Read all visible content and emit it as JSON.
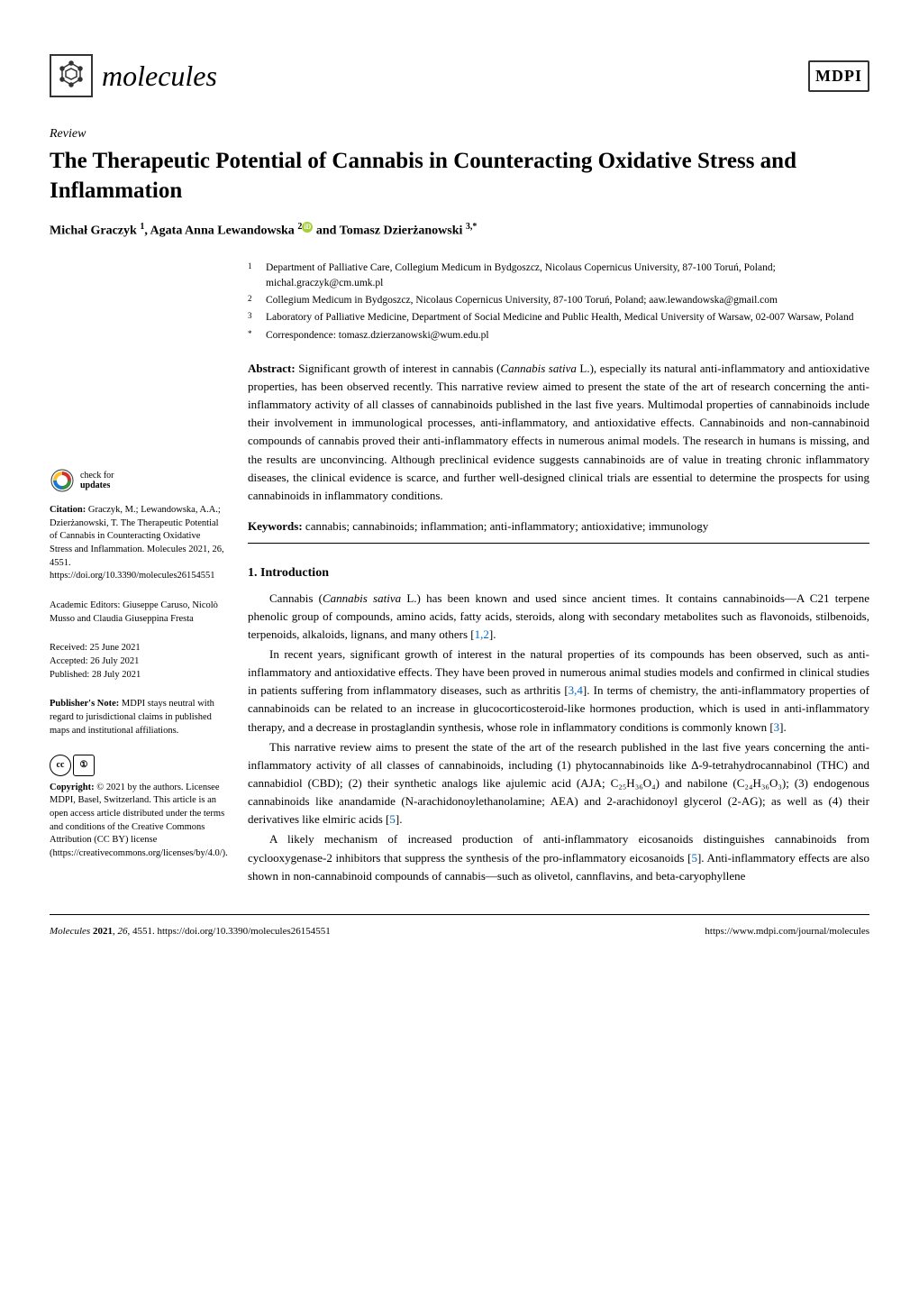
{
  "journal": {
    "name": "molecules",
    "publisher_logo": "MDPI"
  },
  "article_type": "Review",
  "title": "The Therapeutic Potential of Cannabis in Counteracting Oxidative Stress and Inflammation",
  "authors": {
    "a1": {
      "name": "Michał Graczyk",
      "sup": "1"
    },
    "a2": {
      "name": "Agata Anna Lewandowska",
      "sup": "2",
      "orcid": true
    },
    "a3": {
      "name": "Tomasz Dzierżanowski",
      "sup": "3,*"
    }
  },
  "affiliations": {
    "1": {
      "num": "1",
      "text": "Department of Palliative Care, Collegium Medicum in Bydgoszcz, Nicolaus Copernicus University, 87-100 Toruń, Poland; michal.graczyk@cm.umk.pl"
    },
    "2": {
      "num": "2",
      "text": "Collegium Medicum in Bydgoszcz, Nicolaus Copernicus University, 87-100 Toruń, Poland; aaw.lewandowska@gmail.com"
    },
    "3": {
      "num": "3",
      "text": "Laboratory of Palliative Medicine, Department of Social Medicine and Public Health, Medical University of Warsaw, 02-007 Warsaw, Poland"
    },
    "corr": {
      "num": "*",
      "text": "Correspondence: tomasz.dzierzanowski@wum.edu.pl"
    }
  },
  "abstract": {
    "label": "Abstract:",
    "text": "Significant growth of interest in cannabis (Cannabis sativa L.), especially its natural anti-inflammatory and antioxidative properties, has been observed recently. This narrative review aimed to present the state of the art of research concerning the anti-inflammatory activity of all classes of cannabinoids published in the last five years. Multimodal properties of cannabinoids include their involvement in immunological processes, anti-inflammatory, and antioxidative effects. Cannabinoids and non-cannabinoid compounds of cannabis proved their anti-inflammatory effects in numerous animal models. The research in humans is missing, and the results are unconvincing. Although preclinical evidence suggests cannabinoids are of value in treating chronic inflammatory diseases, the clinical evidence is scarce, and further well-designed clinical trials are essential to determine the prospects for using cannabinoids in inflammatory conditions."
  },
  "keywords": {
    "label": "Keywords:",
    "text": "cannabis; cannabinoids; inflammation; anti-inflammatory; antioxidative; immunology"
  },
  "section1": {
    "title": "1. Introduction",
    "p1": "Cannabis (Cannabis sativa L.) has been known and used since ancient times. It contains cannabinoids—A C21 terpene phenolic group of compounds, amino acids, fatty acids, steroids, along with secondary metabolites such as flavonoids, stilbenoids, terpenoids, alkaloids, lignans, and many others [1,2].",
    "p2": "In recent years, significant growth of interest in the natural properties of its compounds has been observed, such as anti-inflammatory and antioxidative effects. They have been proved in numerous animal studies models and confirmed in clinical studies in patients suffering from inflammatory diseases, such as arthritis [3,4]. In terms of chemistry, the anti-inflammatory properties of cannabinoids can be related to an increase in glucocorticosteroid-like hormones production, which is used in anti-inflammatory therapy, and a decrease in prostaglandin synthesis, whose role in inflammatory conditions is commonly known [3].",
    "p3": "This narrative review aims to present the state of the art of the research published in the last five years concerning the anti-inflammatory activity of all classes of cannabinoids, including (1) phytocannabinoids like Δ-9-tetrahydrocannabinol (THC) and cannabidiol (CBD); (2) their synthetic analogs like ajulemic acid (AJA; C₂₅H₃₆O₄) and nabilone (C₂₄H₃₆O₃); (3) endogenous cannabinoids like anandamide (N-arachidonoylethanolamine; AEA) and 2-arachidonoyl glycerol (2-AG); as well as (4) their derivatives like elmiric acids [5].",
    "p4": "A likely mechanism of increased production of anti-inflammatory eicosanoids distinguishes cannabinoids from cyclooxygenase-2 inhibitors that suppress the synthesis of the pro-inflammatory eicosanoids [5]. Anti-inflammatory effects are also shown in non-cannabinoid compounds of cannabis—such as olivetol, cannflavins, and beta-caryophyllene"
  },
  "sidebar": {
    "check_updates": {
      "line1": "check for",
      "line2": "updates"
    },
    "citation": {
      "label": "Citation:",
      "text": "Graczyk, M.; Lewandowska, A.A.; Dzierżanowski, T. The Therapeutic Potential of Cannabis in Counteracting Oxidative Stress and Inflammation. Molecules 2021, 26, 4551. https://doi.org/10.3390/molecules26154551"
    },
    "editors": {
      "label": "Academic Editors:",
      "text": "Giuseppe Caruso, Nicolò Musso and Claudia Giuseppina Fresta"
    },
    "dates": {
      "received": "Received: 25 June 2021",
      "accepted": "Accepted: 26 July 2021",
      "published": "Published: 28 July 2021"
    },
    "publisher_note": {
      "label": "Publisher's Note:",
      "text": "MDPI stays neutral with regard to jurisdictional claims in published maps and institutional affiliations."
    },
    "copyright": {
      "label": "Copyright:",
      "text": "© 2021 by the authors. Licensee MDPI, Basel, Switzerland. This article is an open access article distributed under the terms and conditions of the Creative Commons Attribution (CC BY) license (https://creativecommons.org/licenses/by/4.0/)."
    }
  },
  "footer": {
    "left": "Molecules 2021, 26, 4551. https://doi.org/10.3390/molecules26154551",
    "right": "https://www.mdpi.com/journal/molecules"
  },
  "colors": {
    "text": "#000000",
    "link": "#0066cc",
    "orcid": "#a6ce39",
    "background": "#ffffff"
  }
}
